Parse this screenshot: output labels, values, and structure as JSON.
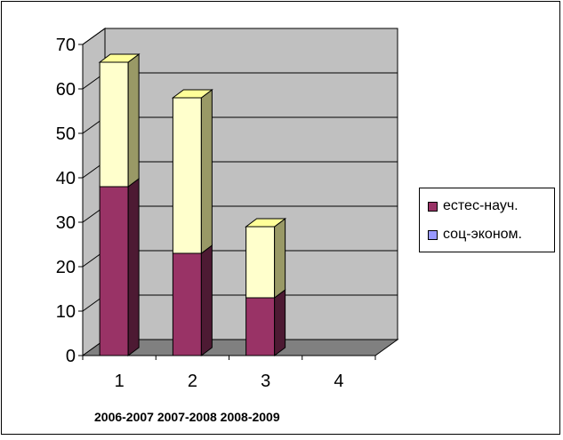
{
  "chart_data": {
    "type": "bar",
    "stacked": true,
    "style": "3d",
    "categories": [
      "1",
      "2",
      "3",
      "4"
    ],
    "series": [
      {
        "name": "естес-науч.",
        "values": [
          38,
          23,
          13,
          0
        ],
        "color": "#993366"
      },
      {
        "name": "соц-эконом.",
        "values": [
          28,
          35,
          16,
          0
        ],
        "color": "#ffffcc",
        "legend_color": "#9999ff"
      }
    ],
    "ylim": [
      0,
      70
    ],
    "yticks": [
      0,
      10,
      20,
      30,
      40,
      50,
      60,
      70
    ],
    "grid": true,
    "legend_position": "right",
    "wall_color": "#c0c0c0",
    "floor_color": "#808080",
    "bottom_label": "2006-2007 2007-2008 2008-2009"
  }
}
